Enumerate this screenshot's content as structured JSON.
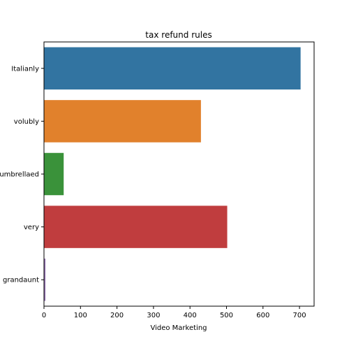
{
  "chart_data": {
    "type": "bar",
    "orientation": "horizontal",
    "title": "tax refund rules",
    "xlabel": "Video Marketing",
    "ylabel": "",
    "categories": [
      "Italianly",
      "volubly",
      "umbrellaed",
      "very",
      "grandaunt"
    ],
    "values": [
      703,
      430,
      54,
      502,
      4
    ],
    "colors": [
      "#3274a1",
      "#e1812c",
      "#3a923a",
      "#c03d3e",
      "#9372b2"
    ],
    "xlim": [
      0,
      740
    ],
    "xticks": [
      0,
      100,
      200,
      300,
      400,
      500,
      600,
      700
    ],
    "grid": false,
    "legend": "none"
  }
}
